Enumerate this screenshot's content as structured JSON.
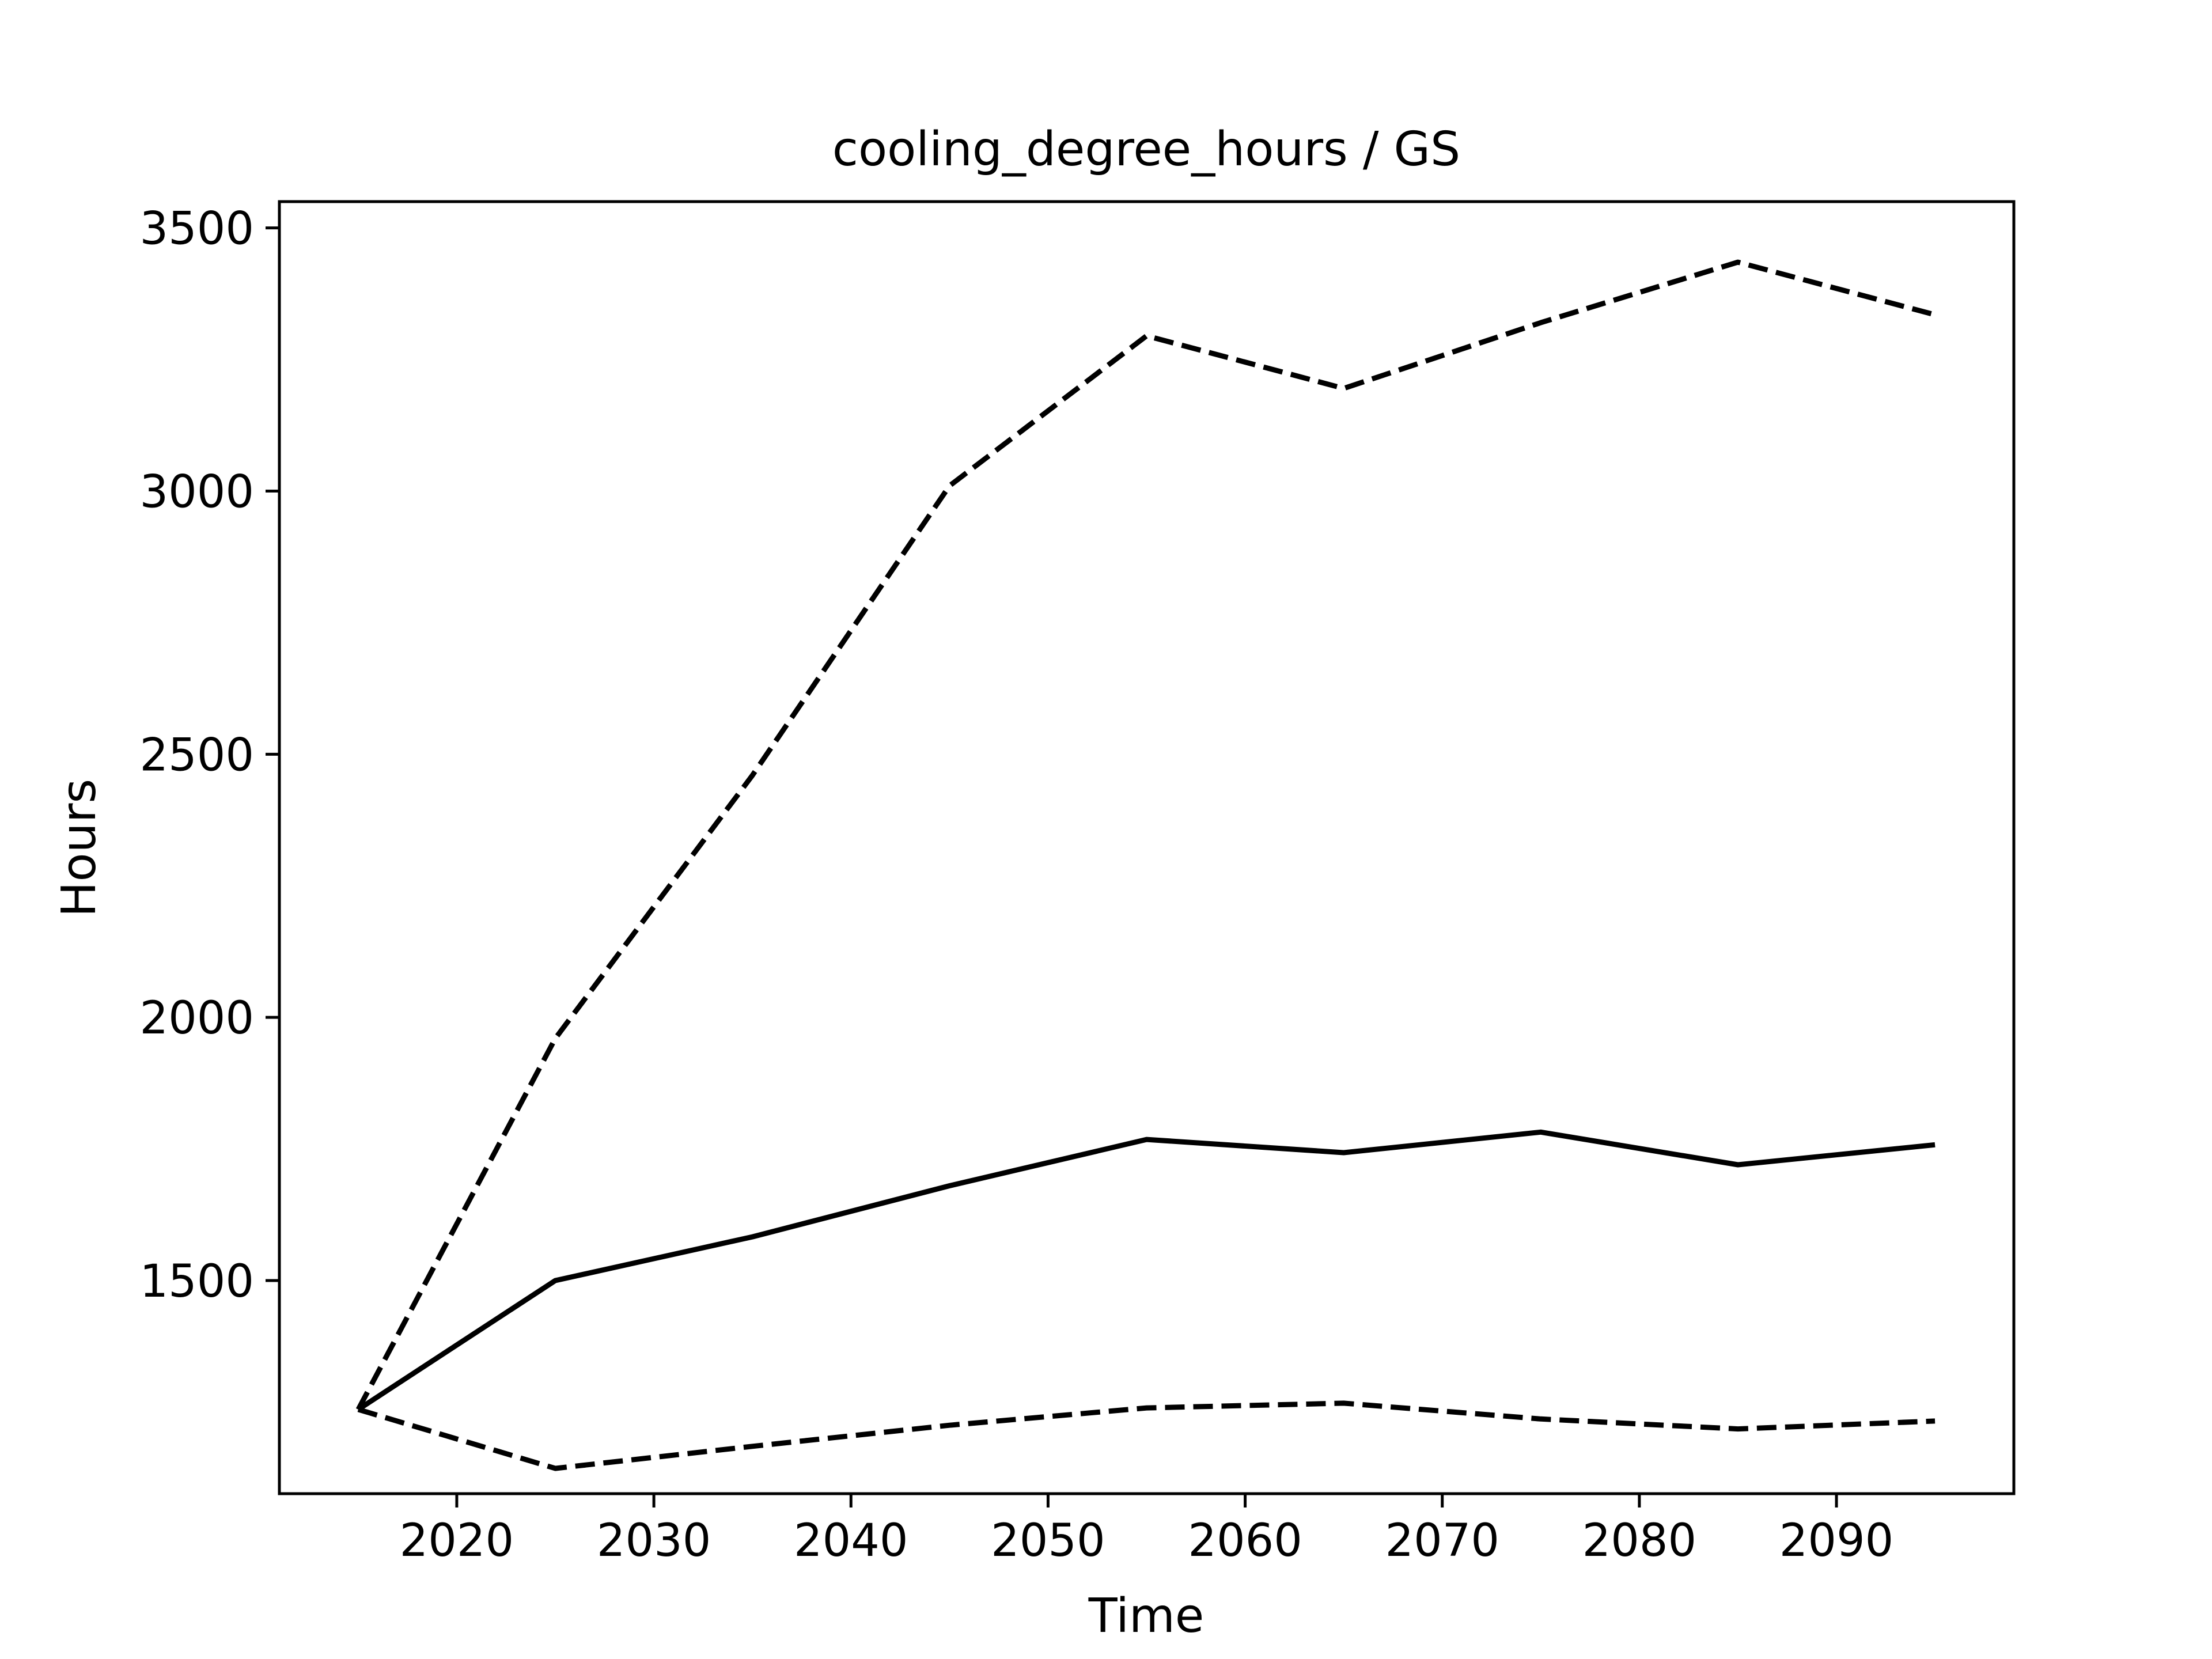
{
  "chart_data": {
    "type": "line",
    "title": "cooling_degree_hours / GS",
    "xlabel": "Time",
    "ylabel": "Hours",
    "xlim": [
      2011,
      2099
    ],
    "ylim": [
      1095,
      3550
    ],
    "xticks": [
      2020,
      2030,
      2040,
      2050,
      2060,
      2070,
      2080,
      2090
    ],
    "yticks": [
      1500,
      2000,
      2500,
      3000,
      3500
    ],
    "grid": false,
    "legend": "none",
    "x": [
      2015,
      2025,
      2035,
      2045,
      2055,
      2065,
      2075,
      2085,
      2095
    ],
    "series": [
      {
        "style": "dashed",
        "color": "#000000",
        "values": [
          1255,
          1960,
          2460,
          3010,
          3295,
          3195,
          3320,
          3435,
          3335
        ]
      },
      {
        "style": "solid",
        "color": "#000000",
        "values": [
          1255,
          1500,
          1583,
          1680,
          1768,
          1743,
          1782,
          1720,
          1758
        ]
      },
      {
        "style": "dashed",
        "color": "#000000",
        "values": [
          1255,
          1143,
          1185,
          1225,
          1258,
          1267,
          1237,
          1218,
          1233
        ]
      }
    ]
  }
}
